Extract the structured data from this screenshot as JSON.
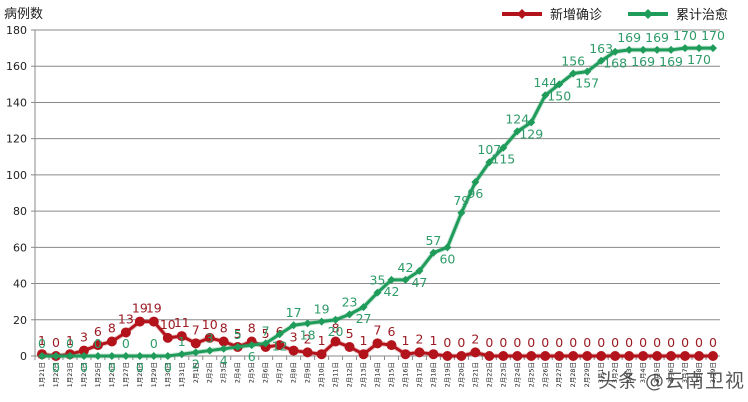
{
  "chart_data": {
    "type": "line",
    "title": "",
    "ylabel": "病例数",
    "xlabel": "",
    "ylim": [
      0,
      180
    ],
    "yticks": [
      0,
      20,
      40,
      60,
      80,
      100,
      120,
      140,
      160,
      180
    ],
    "grid": true,
    "legend_position": "top-right",
    "categories": [
      "1月21日",
      "1月22日",
      "1月23日",
      "1月24日",
      "1月25日",
      "1月26日",
      "1月27日",
      "1月28日",
      "1月29日",
      "1月30日",
      "1月31日",
      "2月1日",
      "2月2日",
      "2月3日",
      "2月4日",
      "2月5日",
      "2月6日",
      "2月7日",
      "2月8日",
      "2月9日",
      "2月10日",
      "2月11日",
      "2月12日",
      "2月13日",
      "2月14日",
      "2月15日",
      "2月16日",
      "2月17日",
      "2月18日",
      "2月19日",
      "2月20日",
      "2月21日",
      "2月22日",
      "2月23日",
      "2月24日",
      "2月25日",
      "2月26日",
      "2月27日",
      "2月28日",
      "2月29日",
      "3月1日",
      "3月2日",
      "3月3日",
      "3月4日",
      "3月5日",
      "3月6日",
      "3月7日",
      "3月8日",
      "3月9日"
    ],
    "series": [
      {
        "name": "新增确诊",
        "color": "#b3141c",
        "values": [
          1,
          0,
          1,
          3,
          6,
          8,
          13,
          19,
          19,
          10,
          11,
          7,
          10,
          8,
          5,
          8,
          5,
          6,
          3,
          2,
          1,
          8,
          5,
          1,
          7,
          6,
          1,
          2,
          1,
          0,
          0,
          2,
          0,
          0,
          0,
          0,
          0,
          0,
          0,
          0,
          0,
          0,
          0,
          0,
          0,
          0,
          0,
          0,
          0
        ]
      },
      {
        "name": "累计治愈",
        "color": "#1f9b5a",
        "values": [
          0,
          0,
          0,
          0,
          0,
          0,
          0,
          0,
          0,
          0,
          1,
          2,
          3,
          4,
          5,
          6,
          7,
          12,
          17,
          18,
          19,
          20,
          23,
          27,
          35,
          42,
          42,
          47,
          57,
          60,
          79,
          96,
          107,
          115,
          124,
          129,
          144,
          150,
          156,
          157,
          163,
          168,
          169,
          169,
          169,
          169,
          170,
          170,
          170
        ]
      }
    ]
  },
  "legend": {
    "new_confirmed": "新增确诊",
    "cumulative_cured": "累计治愈"
  },
  "watermark": "头条 @云南卫视"
}
